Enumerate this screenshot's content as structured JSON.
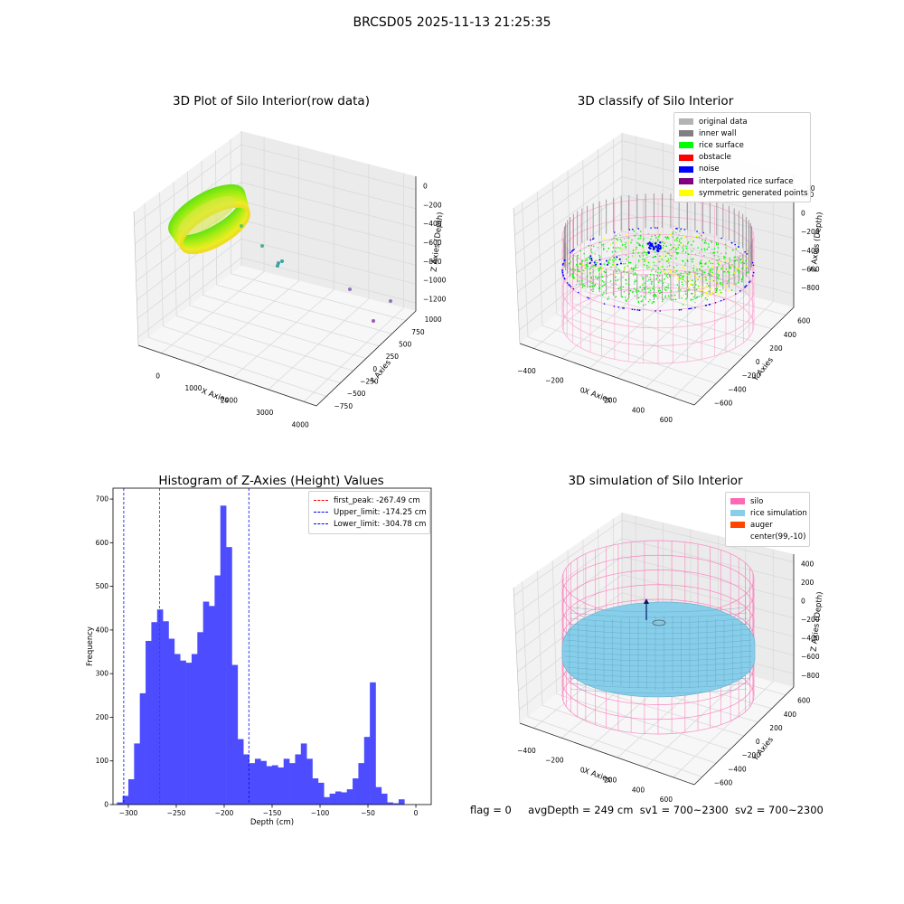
{
  "suptitle": "BRCSD05 2025-11-13 21:25:35",
  "chart_data": [
    {
      "type": "scatter",
      "subtype": "3d",
      "title": "3D Plot of Silo Interior(row data)",
      "xlabel": "X Axies",
      "ylabel": "Y Axies",
      "zlabel": "Z Axies (Depth)",
      "x_ticks": [
        "0",
        "1000",
        "2000",
        "3000",
        "4000"
      ],
      "y_ticks": [
        "−750",
        "−500",
        "−250",
        "0",
        "250",
        "500",
        "750",
        "1000"
      ],
      "z_ticks": [
        "0",
        "−200",
        "−400",
        "−600",
        "−800",
        "−1000",
        "−1200"
      ],
      "xlim": [
        -500,
        4500
      ],
      "ylim": [
        -800,
        1100
      ],
      "zlim": [
        -1300,
        100
      ],
      "colormap": "viridis",
      "ring": {
        "cx": 0,
        "cy": 0,
        "r": 570,
        "z_top": -180,
        "z_bottom": -400
      },
      "outliers": [
        {
          "x": 500,
          "y": -50,
          "z": -400
        },
        {
          "x": 900,
          "y": -100,
          "z": -600
        },
        {
          "x": 1200,
          "y": -200,
          "z": -760
        },
        {
          "x": 1250,
          "y": -180,
          "z": -780
        },
        {
          "x": 1300,
          "y": -170,
          "z": -740
        },
        {
          "x": 3000,
          "y": -650,
          "z": -700
        },
        {
          "x": 3800,
          "y": -700,
          "z": -560
        },
        {
          "x": 3300,
          "y": -400,
          "z": -1050
        }
      ],
      "grid": true
    },
    {
      "type": "scatter",
      "subtype": "3d",
      "title": "3D classify of Silo Interior",
      "xlabel": "X Axies",
      "ylabel": "Y Axies",
      "zlabel": "Z Axies (Depth)",
      "x_ticks": [
        "−400",
        "−200",
        "0",
        "200",
        "400",
        "600"
      ],
      "y_ticks": [
        "−600",
        "−400",
        "−200",
        "0",
        "200",
        "400",
        "600"
      ],
      "z_ticks": [
        "200",
        "0",
        "−200",
        "−400",
        "−600",
        "−800"
      ],
      "z_top_tick": "00",
      "xlim": [
        -500,
        700
      ],
      "ylim": [
        -700,
        700
      ],
      "zlim": [
        -950,
        450
      ],
      "legend": {
        "position": "upper right",
        "items": [
          {
            "label": "original data",
            "color": "#b3b3b3"
          },
          {
            "label": "inner wall",
            "color": "#808080"
          },
          {
            "label": "rice surface",
            "color": "#00ff00"
          },
          {
            "label": "obstacle",
            "color": "#ff0000"
          },
          {
            "label": "noise",
            "color": "#0000ff"
          },
          {
            "label": "interpolated rice surface",
            "color": "#800080"
          },
          {
            "label": "symmetric generated points",
            "color": "#ffff00"
          }
        ]
      },
      "silo": {
        "cx": 99,
        "cy": -10,
        "r": 600,
        "z_top": -200,
        "z_bottom": -700
      },
      "grid": true
    },
    {
      "type": "bar",
      "subtype": "histogram",
      "title": "Histogram of Z-Axies (Height) Values",
      "xlabel": "Depth (cm)",
      "ylabel": "Frequency",
      "x_ticks": [
        -300,
        -250,
        -200,
        -150,
        -100,
        -50,
        0
      ],
      "y_ticks": [
        0,
        100,
        200,
        300,
        400,
        500,
        600,
        700
      ],
      "xlim": [
        -316,
        16
      ],
      "ylim": [
        0,
        725
      ],
      "bin_start": -312,
      "bin_width": 6,
      "values": [
        5,
        20,
        58,
        140,
        255,
        375,
        418,
        447,
        420,
        380,
        345,
        330,
        325,
        345,
        395,
        465,
        455,
        525,
        685,
        590,
        320,
        150,
        115,
        95,
        105,
        100,
        88,
        90,
        85,
        105,
        95,
        115,
        140,
        105,
        60,
        50,
        17,
        25,
        30,
        28,
        35,
        60,
        95,
        155,
        280,
        40,
        25,
        5,
        3,
        12
      ],
      "bar_color": "#4d4dff",
      "lines": [
        {
          "label": "first_peak: -267.49 cm",
          "x": -267.49,
          "color": "#ff0000"
        },
        {
          "label": "Upper_limit: -174.25 cm",
          "x": -174.25,
          "color": "#0000ff"
        },
        {
          "label": "Lower_limit: -304.78 cm",
          "x": -304.78,
          "color": "#0000ff"
        }
      ],
      "legend": {
        "position": "upper right"
      },
      "grid": false
    },
    {
      "type": "scatter",
      "subtype": "3d",
      "title": "3D simulation of Silo Interior",
      "xlabel": "X Axies",
      "ylabel": "Y Axies",
      "zlabel": "Z Axies (Depth)",
      "x_ticks": [
        "−400",
        "−200",
        "0",
        "200",
        "400",
        "600"
      ],
      "y_ticks": [
        "−600",
        "−400",
        "−200",
        "0",
        "200",
        "400",
        "600"
      ],
      "z_ticks": [
        "400",
        "200",
        "0",
        "−200",
        "−400",
        "−600",
        "−800"
      ],
      "xlim": [
        -500,
        700
      ],
      "ylim": [
        -700,
        700
      ],
      "zlim": [
        -950,
        450
      ],
      "legend": {
        "position": "upper right",
        "items": [
          {
            "label": "silo",
            "color": "#ff69b4"
          },
          {
            "label": "rice simulation",
            "color": "#87ceeb"
          },
          {
            "label": "auger",
            "color": "#ff4500"
          },
          {
            "label": "center(99,-10)",
            "color": "none"
          }
        ]
      },
      "silo": {
        "cx": 99,
        "cy": -10,
        "r": 600,
        "z_top": 450,
        "z_bottom": -950
      },
      "rice_surface_z": -350,
      "grid": true
    }
  ],
  "status": {
    "flag": "flag = 0",
    "avg_depth": "avgDepth = 249 cm",
    "sv1": "sv1 = 700~2300",
    "sv2": "sv2 = 700~2300"
  }
}
